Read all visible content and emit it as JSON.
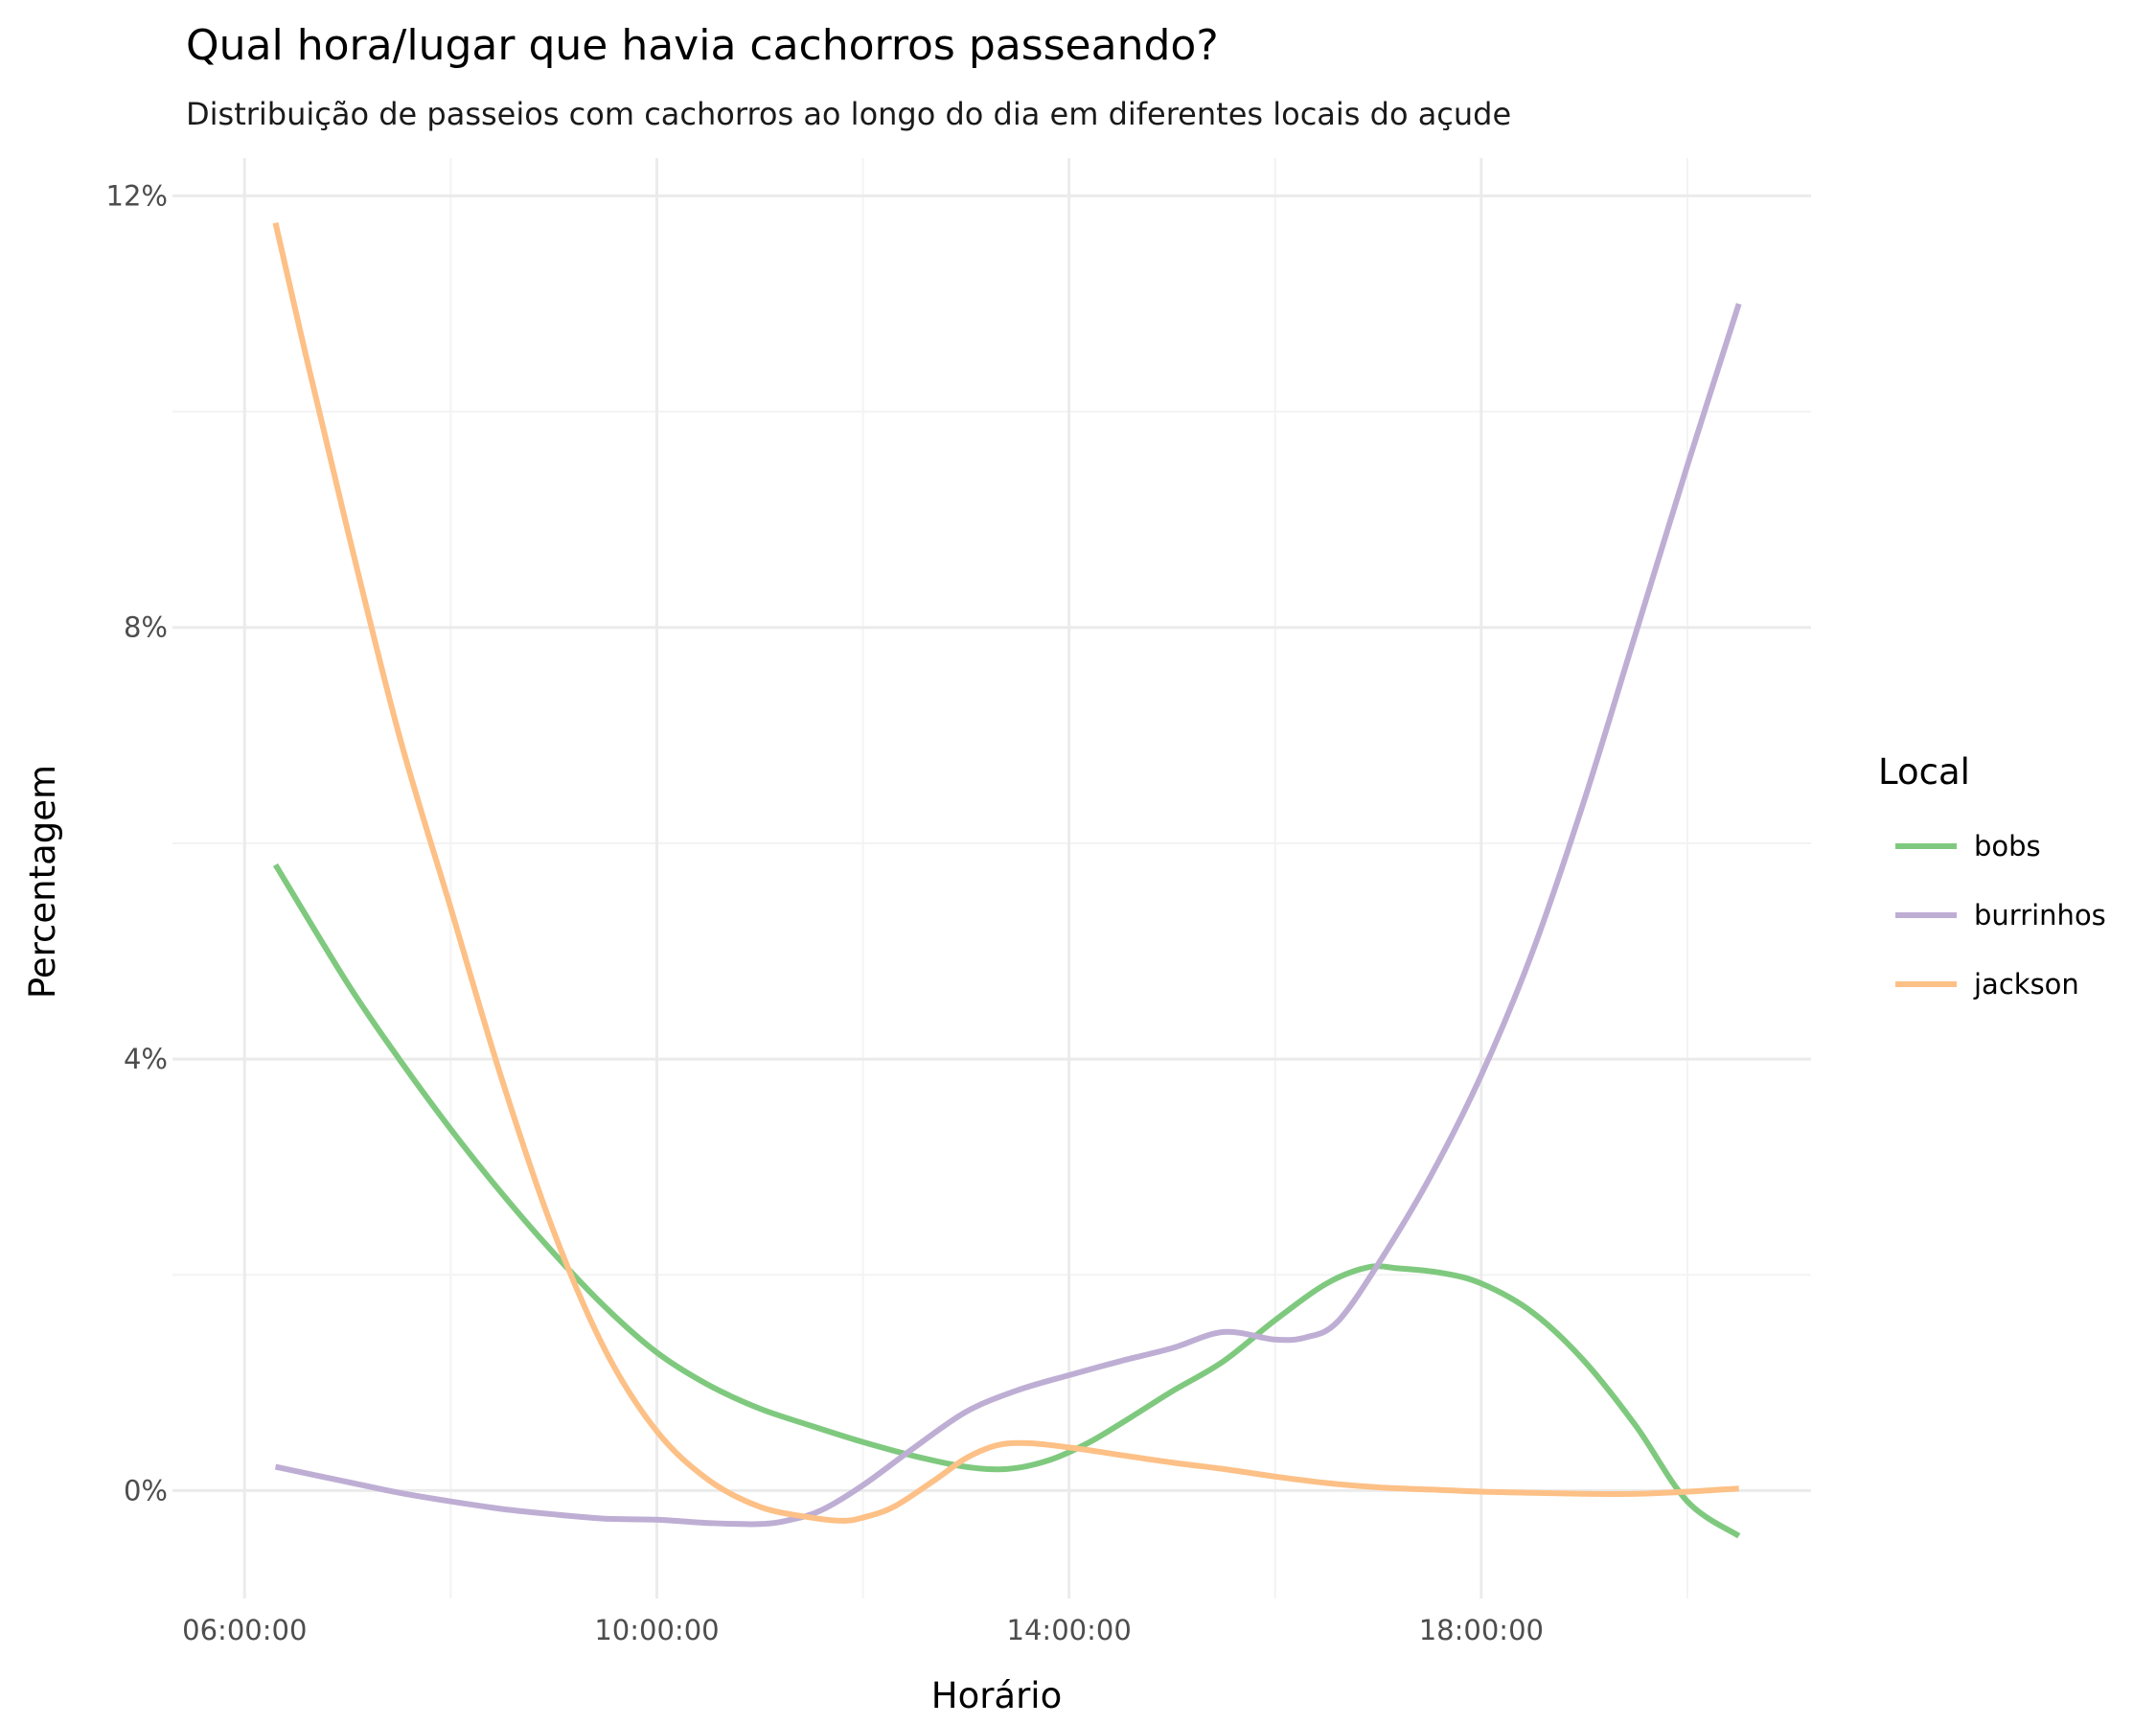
{
  "chart_data": {
    "type": "line",
    "title": "Qual hora/lugar que havia cachorros passeando?",
    "subtitle": "Distribuição de passeios com cachorros ao longo do dia em diferentes locais do açude",
    "xlabel": "Horário",
    "ylabel": "Percentagem",
    "xlim_hours": [
      5.3,
      21.2
    ],
    "ylim": [
      -1.0,
      12.35
    ],
    "x_ticks": [
      {
        "value": 6,
        "label": "06:00:00"
      },
      {
        "value": 10,
        "label": "10:00:00"
      },
      {
        "value": 14,
        "label": "14:00:00"
      },
      {
        "value": 18,
        "label": "18:00:00"
      }
    ],
    "x_minor_ticks": [
      8,
      12,
      16,
      20
    ],
    "y_ticks": [
      {
        "value": 0,
        "label": "0%"
      },
      {
        "value": 4,
        "label": "4%"
      },
      {
        "value": 8,
        "label": "8%"
      },
      {
        "value": 12,
        "label": "12%"
      }
    ],
    "y_minor_ticks": [
      2,
      6,
      10
    ],
    "grid": true,
    "legend": {
      "title": "Local",
      "position": "right"
    },
    "series": [
      {
        "name": "bobs",
        "color": "#7fc97f",
        "x": [
          6.3,
          7.0,
          7.5,
          8.0,
          8.5,
          9.0,
          9.5,
          10.0,
          10.5,
          11.0,
          11.5,
          12.0,
          12.5,
          13.0,
          13.4,
          13.8,
          14.2,
          14.6,
          15.0,
          15.5,
          16.0,
          16.5,
          16.9,
          17.2,
          17.6,
          18.0,
          18.5,
          19.0,
          19.5,
          20.0,
          20.5
        ],
        "y": [
          5.8,
          4.7,
          4.0,
          3.35,
          2.75,
          2.2,
          1.7,
          1.28,
          0.98,
          0.76,
          0.6,
          0.45,
          0.32,
          0.22,
          0.2,
          0.28,
          0.45,
          0.68,
          0.92,
          1.2,
          1.58,
          1.92,
          2.07,
          2.06,
          2.02,
          1.92,
          1.65,
          1.2,
          0.6,
          -0.1,
          -0.42
        ]
      },
      {
        "name": "burrinhos",
        "color": "#beaed4",
        "x": [
          6.3,
          7.0,
          7.5,
          8.0,
          8.5,
          9.0,
          9.5,
          10.0,
          10.5,
          11.0,
          11.3,
          11.6,
          12.0,
          12.5,
          13.0,
          13.5,
          14.0,
          14.5,
          15.0,
          15.5,
          16.0,
          16.3,
          16.6,
          17.0,
          17.5,
          18.0,
          18.5,
          19.0,
          19.5,
          20.0,
          20.5
        ],
        "y": [
          0.22,
          0.08,
          -0.02,
          -0.1,
          -0.17,
          -0.22,
          -0.26,
          -0.27,
          -0.3,
          -0.31,
          -0.27,
          -0.18,
          0.05,
          0.4,
          0.73,
          0.93,
          1.07,
          1.2,
          1.32,
          1.47,
          1.4,
          1.42,
          1.56,
          2.1,
          2.9,
          3.85,
          5.0,
          6.4,
          7.95,
          9.5,
          11.0
        ]
      },
      {
        "name": "jackson",
        "color": "#fdc086",
        "x": [
          6.3,
          6.6,
          7.0,
          7.5,
          8.0,
          8.5,
          9.0,
          9.5,
          10.0,
          10.5,
          11.0,
          11.5,
          11.8,
          12.0,
          12.3,
          12.7,
          13.0,
          13.3,
          13.6,
          14.0,
          14.5,
          15.0,
          15.5,
          16.0,
          16.5,
          17.0,
          17.5,
          18.0,
          18.5,
          19.0,
          19.5,
          20.0,
          20.5
        ],
        "y": [
          11.75,
          10.5,
          8.9,
          7.0,
          5.4,
          3.8,
          2.4,
          1.3,
          0.55,
          0.1,
          -0.15,
          -0.25,
          -0.28,
          -0.25,
          -0.15,
          0.1,
          0.3,
          0.42,
          0.44,
          0.4,
          0.33,
          0.26,
          0.2,
          0.13,
          0.07,
          0.03,
          0.01,
          -0.01,
          -0.02,
          -0.03,
          -0.03,
          -0.01,
          0.02
        ]
      }
    ]
  }
}
